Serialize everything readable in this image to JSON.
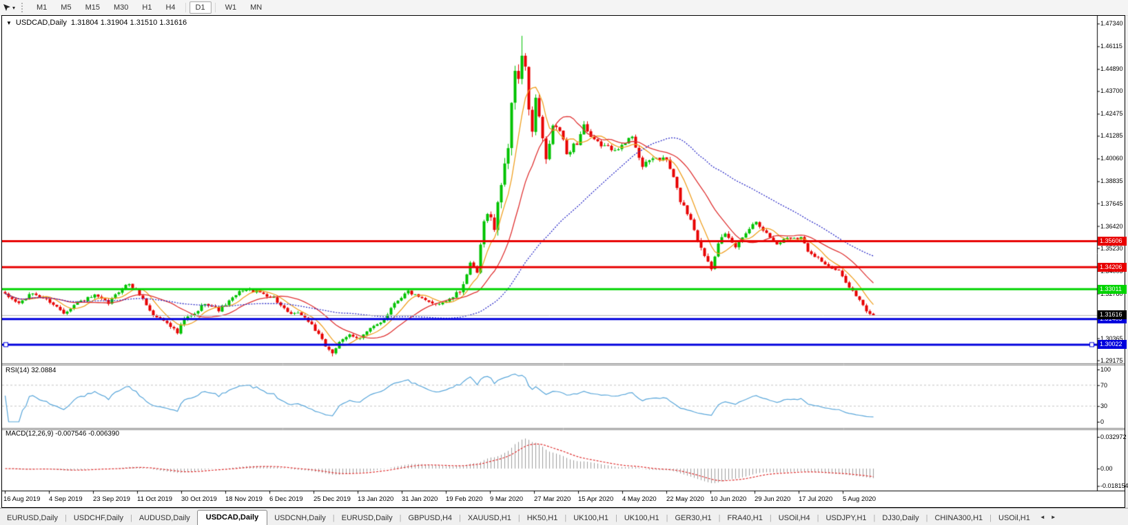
{
  "toolbar": {
    "caret": "▾",
    "timeframes": [
      {
        "label": "M1",
        "active": false
      },
      {
        "label": "M5",
        "active": false
      },
      {
        "label": "M15",
        "active": false
      },
      {
        "label": "M30",
        "active": false
      },
      {
        "label": "H1",
        "active": false
      },
      {
        "label": "H4",
        "active": false
      },
      {
        "label": "D1",
        "active": true
      },
      {
        "label": "W1",
        "active": false
      },
      {
        "label": "MN",
        "active": false
      }
    ]
  },
  "chart": {
    "type": "candlestick",
    "title_caret": "▼",
    "title_symbol": "USDCAD,Daily",
    "title_ohlc": "1.31804 1.31904 1.31510 1.31616",
    "colors": {
      "up": "#00c200",
      "down": "#e80000",
      "bg": "#ffffff",
      "current_line": "#b4b4b4"
    },
    "price_axis_ticks": [
      "1.47340",
      "1.46115",
      "1.44890",
      "1.43700",
      "1.42475",
      "1.41285",
      "1.40060",
      "1.38835",
      "1.37645",
      "1.36420",
      "1.35230",
      "1.34005",
      "1.32780",
      "1.30365",
      "1.29175"
    ],
    "price_top": 1.4776,
    "price_bottom": 1.2909,
    "current_price": {
      "price": 1.31616,
      "label": "1.31616",
      "line_color": "#b4b4b4",
      "badge_color": "#000000"
    },
    "hlines": [
      {
        "price": 1.35606,
        "label": "1.35606",
        "color": "#e80000",
        "width": 3,
        "handles": false
      },
      {
        "price": 1.34206,
        "label": "1.34206",
        "color": "#e80000",
        "width": 3,
        "handles": false
      },
      {
        "price": 1.33011,
        "label": "1.33011",
        "color": "#00d400",
        "width": 3,
        "handles": false
      },
      {
        "price": 1.31405,
        "label": "1.31405",
        "color": "#0000dd",
        "width": 3,
        "handles": false
      },
      {
        "price": 1.30022,
        "label": "1.30022",
        "color": "#0000dd",
        "width": 3,
        "handles": true
      }
    ],
    "moving_averages": [
      {
        "period": 7,
        "color": "#f0a020",
        "style": "solid"
      },
      {
        "period": 18,
        "color": "#e03030",
        "style": "solid"
      },
      {
        "period": 50,
        "color": "#2828c8",
        "style": "dotted"
      }
    ],
    "dates": [
      "16 Aug 2019",
      "4 Sep 2019",
      "23 Sep 2019",
      "11 Oct 2019",
      "30 Oct 2019",
      "18 Nov 2019",
      "6 Dec 2019",
      "25 Dec 2019",
      "13 Jan 2020",
      "31 Jan 2020",
      "19 Feb 2020",
      "9 Mar 2020",
      "27 Mar 2020",
      "15 Apr 2020",
      "4 May 2020",
      "22 May 2020",
      "10 Jun 2020",
      "29 Jun 2020",
      "17 Jul 2020",
      "5 Aug 2020"
    ],
    "series": {
      "count": 253,
      "last_close": 1.31616,
      "extreme_high": 1.4668,
      "extreme_low": 1.2939,
      "close_keyframes": [
        [
          0,
          1.327,
          3
        ],
        [
          4,
          1.3225,
          3
        ],
        [
          8,
          1.328,
          3
        ],
        [
          13,
          1.3235,
          3
        ],
        [
          17,
          1.3175,
          3
        ],
        [
          21,
          1.323,
          3
        ],
        [
          26,
          1.3265,
          3
        ],
        [
          30,
          1.3225,
          3
        ],
        [
          34,
          1.331,
          3
        ],
        [
          36,
          1.333,
          3
        ],
        [
          39,
          1.3275,
          3
        ],
        [
          43,
          1.316,
          3
        ],
        [
          47,
          1.3125,
          3
        ],
        [
          50,
          1.3065,
          3
        ],
        [
          52,
          1.314,
          4
        ],
        [
          55,
          1.3165,
          3
        ],
        [
          58,
          1.323,
          3
        ],
        [
          62,
          1.319,
          3
        ],
        [
          65,
          1.3235,
          3
        ],
        [
          69,
          1.33,
          3
        ],
        [
          73,
          1.329,
          3
        ],
        [
          78,
          1.3255,
          3
        ],
        [
          82,
          1.317,
          3
        ],
        [
          86,
          1.3165,
          3
        ],
        [
          89,
          1.311,
          3
        ],
        [
          93,
          1.2995,
          3
        ],
        [
          95,
          1.296,
          3
        ],
        [
          97,
          1.301,
          3
        ],
        [
          100,
          1.3055,
          3
        ],
        [
          103,
          1.304,
          3
        ],
        [
          106,
          1.3085,
          3
        ],
        [
          110,
          1.314,
          3
        ],
        [
          113,
          1.323,
          3
        ],
        [
          117,
          1.329,
          3
        ],
        [
          120,
          1.3255,
          3
        ],
        [
          123,
          1.323,
          3
        ],
        [
          126,
          1.3225,
          3
        ],
        [
          129,
          1.3245,
          3
        ],
        [
          132,
          1.329,
          4
        ],
        [
          135,
          1.343,
          5
        ],
        [
          137,
          1.339,
          6
        ],
        [
          139,
          1.366,
          8
        ],
        [
          140,
          1.373,
          8
        ],
        [
          142,
          1.363,
          8
        ],
        [
          144,
          1.388,
          9
        ],
        [
          146,
          1.408,
          10
        ],
        [
          147,
          1.428,
          11
        ],
        [
          148,
          1.449,
          11
        ],
        [
          149,
          1.445,
          11
        ],
        [
          150,
          1.456,
          10
        ],
        [
          151,
          1.448,
          10
        ],
        [
          152,
          1.428,
          9
        ],
        [
          153,
          1.414,
          8
        ],
        [
          154,
          1.433,
          8
        ],
        [
          155,
          1.423,
          7
        ],
        [
          156,
          1.41,
          7
        ],
        [
          157,
          1.399,
          7
        ],
        [
          158,
          1.409,
          6
        ],
        [
          159,
          1.418,
          6
        ],
        [
          161,
          1.416,
          6
        ],
        [
          163,
          1.403,
          5
        ],
        [
          165,
          1.408,
          5
        ],
        [
          166,
          1.409,
          5
        ],
        [
          168,
          1.419,
          5
        ],
        [
          170,
          1.411,
          5
        ],
        [
          173,
          1.408,
          4
        ],
        [
          176,
          1.406,
          4
        ],
        [
          179,
          1.407,
          4
        ],
        [
          182,
          1.413,
          4
        ],
        [
          185,
          1.396,
          4
        ],
        [
          188,
          1.401,
          4
        ],
        [
          192,
          1.4,
          4
        ],
        [
          194,
          1.39,
          4
        ],
        [
          196,
          1.378,
          4
        ],
        [
          199,
          1.368,
          4
        ],
        [
          202,
          1.352,
          4
        ],
        [
          205,
          1.342,
          4
        ],
        [
          207,
          1.356,
          5
        ],
        [
          209,
          1.359,
          4
        ],
        [
          212,
          1.353,
          4
        ],
        [
          215,
          1.361,
          3
        ],
        [
          218,
          1.367,
          3
        ],
        [
          221,
          1.36,
          3
        ],
        [
          224,
          1.3545,
          3
        ],
        [
          227,
          1.358,
          3
        ],
        [
          231,
          1.358,
          3
        ],
        [
          233,
          1.351,
          3
        ],
        [
          236,
          1.347,
          3
        ],
        [
          239,
          1.342,
          3
        ],
        [
          242,
          1.3395,
          3
        ],
        [
          244,
          1.3345,
          3
        ],
        [
          246,
          1.329,
          3
        ],
        [
          248,
          1.324,
          3
        ],
        [
          250,
          1.318,
          3
        ],
        [
          252,
          1.3162,
          2
        ]
      ]
    }
  },
  "rsi": {
    "label": "RSI(14) 32.0884",
    "period": 14,
    "value": "32.0884",
    "color": "#56a5da",
    "levels": [
      70,
      30
    ],
    "axis_ticks": [
      "100",
      "70",
      "30",
      "0"
    ]
  },
  "macd": {
    "label": "MACD(12,26,9) -0.007546 -0.006390",
    "fast": 12,
    "slow": 26,
    "signal": 9,
    "main_value": "-0.007546",
    "signal_value": "-0.006390",
    "histogram_color": "#9c9c9c",
    "signal_color": "#e03030",
    "axis_ticks": [
      "0.032972",
      "0.00",
      "-0.018154"
    ],
    "axis_max": 0.032972,
    "axis_min": -0.018154
  },
  "tabs": {
    "scroll_left": "◄",
    "scroll_right": "►",
    "items": [
      {
        "label": "EURUSD,Daily",
        "active": false
      },
      {
        "label": "USDCHF,Daily",
        "active": false
      },
      {
        "label": "AUDUSD,Daily",
        "active": false
      },
      {
        "label": "USDCAD,Daily",
        "active": true
      },
      {
        "label": "USDCNH,Daily",
        "active": false
      },
      {
        "label": "EURUSD,Daily",
        "active": false
      },
      {
        "label": "GBPUSD,H4",
        "active": false
      },
      {
        "label": "XAUUSD,H1",
        "active": false
      },
      {
        "label": "HK50,H1",
        "active": false
      },
      {
        "label": "UK100,H1",
        "active": false
      },
      {
        "label": "UK100,H1",
        "active": false
      },
      {
        "label": "GER30,H1",
        "active": false
      },
      {
        "label": "FRA40,H1",
        "active": false
      },
      {
        "label": "USOil,H4",
        "active": false
      },
      {
        "label": "USDJPY,H1",
        "active": false
      },
      {
        "label": "DJ30,Daily",
        "active": false
      },
      {
        "label": "CHINA300,H1",
        "active": false
      },
      {
        "label": "USOil,H1",
        "active": false
      }
    ]
  }
}
